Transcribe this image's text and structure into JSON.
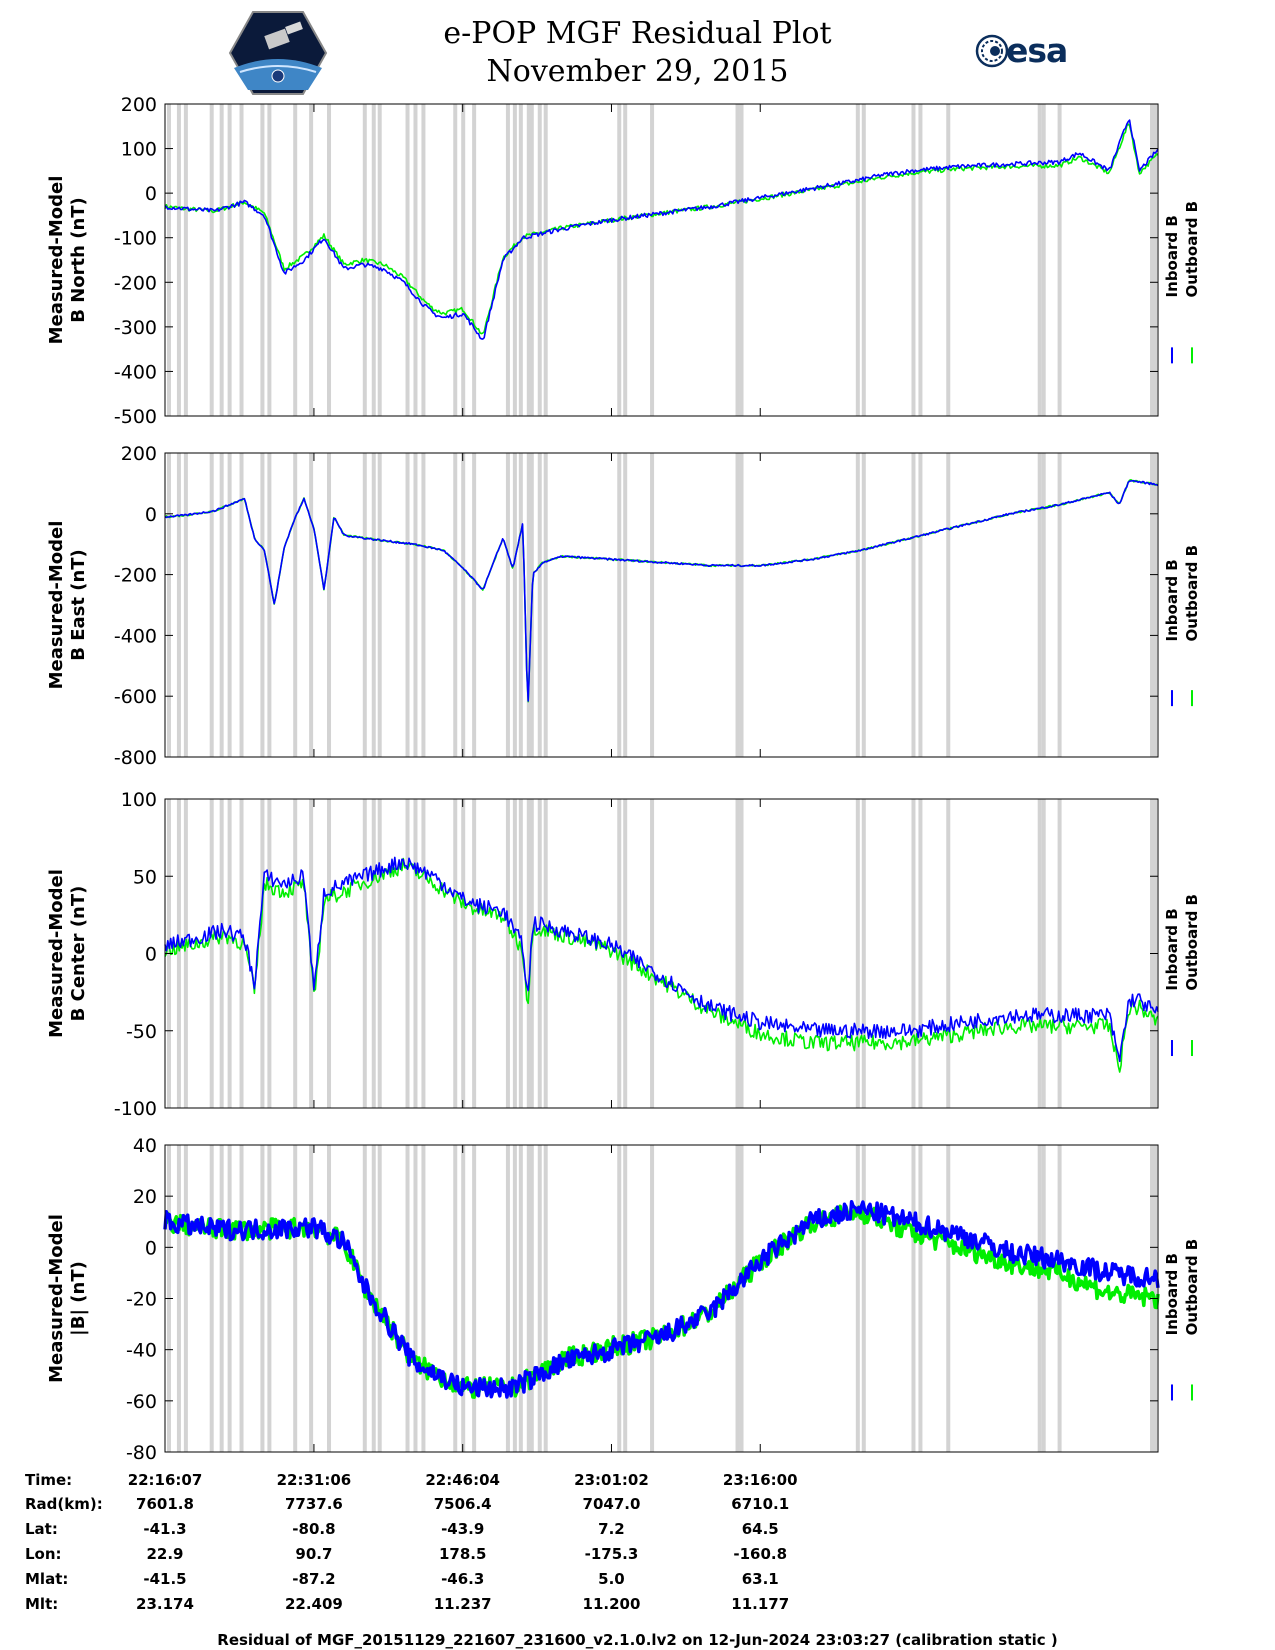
{
  "header": {
    "title": "e-POP MGF Residual Plot",
    "date": "November 29, 2015",
    "left_logo_icon": "cassiope-mission-logo",
    "right_logo_icon": "esa-logo",
    "right_logo_text": "esa"
  },
  "colors": {
    "inboard": "#0000ff",
    "outboard": "#00ee00",
    "gap_bands": "#d3d3d3",
    "frame": "#000000"
  },
  "chart_data": [
    {
      "type": "line",
      "ylabel_line1": "Measured-Model",
      "ylabel_line2": "B North (nT)",
      "ylim": [
        -500,
        200
      ],
      "yticks": [
        200,
        100,
        0,
        -100,
        -200,
        -300,
        -400,
        -500
      ],
      "legend": [
        "Inboard B",
        "Outboard B"
      ],
      "series": [
        {
          "name": "Inboard B",
          "x_min": [
            0,
            2,
            5,
            8,
            10,
            12,
            14,
            16,
            18,
            20,
            22,
            24,
            26,
            27,
            28,
            30,
            32,
            34,
            36,
            38,
            40,
            45,
            50,
            55,
            60,
            65,
            70,
            72,
            75,
            80,
            85,
            90,
            92,
            95,
            97,
            98,
            100
          ],
          "values": [
            -30,
            -35,
            -40,
            -20,
            -50,
            -180,
            -150,
            -100,
            -170,
            -160,
            -170,
            -200,
            -250,
            -270,
            -280,
            -270,
            -330,
            -150,
            -100,
            -90,
            -80,
            -60,
            -45,
            -30,
            -10,
            10,
            30,
            40,
            50,
            60,
            65,
            70,
            90,
            50,
            170,
            50,
            100
          ]
        },
        {
          "name": "Outboard B",
          "x_min": [
            0,
            2,
            5,
            8,
            10,
            12,
            14,
            16,
            18,
            20,
            22,
            24,
            26,
            27,
            28,
            30,
            32,
            34,
            36,
            38,
            40,
            45,
            50,
            55,
            60,
            65,
            70,
            72,
            75,
            80,
            85,
            90,
            92,
            95,
            97,
            98,
            100
          ],
          "values": [
            -30,
            -35,
            -40,
            -20,
            -45,
            -170,
            -140,
            -95,
            -160,
            -150,
            -160,
            -190,
            -240,
            -260,
            -270,
            -260,
            -320,
            -145,
            -98,
            -88,
            -78,
            -60,
            -45,
            -30,
            -12,
            7,
            26,
            35,
            45,
            55,
            60,
            62,
            80,
            45,
            160,
            45,
            90
          ]
        }
      ]
    },
    {
      "type": "line",
      "ylabel_line1": "Measured-Model",
      "ylabel_line2": "B East (nT)",
      "ylim": [
        -800,
        200
      ],
      "yticks": [
        200,
        0,
        -200,
        -400,
        -600,
        -800
      ],
      "legend": [
        "Inboard B",
        "Outboard B"
      ],
      "series": [
        {
          "name": "Inboard B",
          "x_min": [
            0,
            2,
            5,
            8,
            9,
            10,
            11,
            12,
            13,
            14,
            15,
            16,
            17,
            18,
            20,
            25,
            28,
            30,
            32,
            34,
            35,
            36,
            36.5,
            37,
            38,
            40,
            45,
            50,
            55,
            60,
            65,
            70,
            75,
            80,
            85,
            90,
            95,
            96,
            97,
            100
          ],
          "values": [
            -10,
            -5,
            10,
            50,
            -80,
            -120,
            -300,
            -110,
            -20,
            50,
            -50,
            -250,
            -10,
            -70,
            -80,
            -100,
            -120,
            -180,
            -250,
            -80,
            -180,
            -30,
            -650,
            -200,
            -160,
            -140,
            -150,
            -160,
            -170,
            -170,
            -150,
            -120,
            -80,
            -40,
            0,
            30,
            70,
            30,
            110,
            95
          ]
        },
        {
          "name": "Outboard B",
          "x_min": [
            0,
            2,
            5,
            8,
            9,
            10,
            11,
            12,
            13,
            14,
            15,
            16,
            17,
            18,
            20,
            25,
            28,
            30,
            32,
            34,
            35,
            36,
            36.5,
            37,
            38,
            40,
            45,
            50,
            55,
            60,
            65,
            70,
            75,
            80,
            85,
            90,
            95,
            96,
            97,
            100
          ],
          "values": [
            -10,
            -5,
            10,
            50,
            -80,
            -120,
            -300,
            -110,
            -20,
            50,
            -50,
            -250,
            -10,
            -70,
            -80,
            -100,
            -120,
            -180,
            -250,
            -80,
            -180,
            -30,
            -650,
            -200,
            -160,
            -140,
            -150,
            -160,
            -170,
            -170,
            -150,
            -120,
            -80,
            -40,
            0,
            30,
            70,
            30,
            110,
            95
          ]
        }
      ]
    },
    {
      "type": "line",
      "ylabel_line1": "Measured-Model",
      "ylabel_line2": "B Center (nT)",
      "ylim": [
        -100,
        100
      ],
      "yticks": [
        100,
        50,
        0,
        -50,
        -100
      ],
      "legend": [
        "Inboard B",
        "Outboard B"
      ],
      "series": [
        {
          "name": "Inboard B",
          "x_min": [
            0,
            3,
            6,
            8,
            9,
            10,
            12,
            14,
            15,
            16,
            18,
            20,
            24,
            27,
            30,
            32,
            34,
            36,
            36.5,
            37,
            40,
            45,
            50,
            55,
            60,
            65,
            70,
            75,
            80,
            85,
            90,
            95,
            96,
            97,
            98,
            100
          ],
          "values": [
            5,
            10,
            15,
            10,
            -20,
            50,
            45,
            50,
            -25,
            40,
            45,
            50,
            60,
            50,
            35,
            30,
            28,
            5,
            -30,
            20,
            15,
            5,
            -15,
            -35,
            -45,
            -50,
            -50,
            -50,
            -45,
            -40,
            -40,
            -40,
            -70,
            -30,
            -30,
            -40
          ]
        },
        {
          "name": "Outboard B",
          "x_min": [
            0,
            3,
            6,
            8,
            9,
            10,
            12,
            14,
            15,
            16,
            18,
            20,
            24,
            27,
            30,
            32,
            34,
            36,
            36.5,
            37,
            40,
            45,
            50,
            55,
            60,
            65,
            70,
            75,
            80,
            85,
            90,
            95,
            96,
            97,
            98,
            100
          ],
          "values": [
            2,
            6,
            12,
            6,
            -25,
            45,
            40,
            45,
            -30,
            35,
            40,
            46,
            57,
            46,
            32,
            27,
            24,
            2,
            -33,
            17,
            12,
            2,
            -18,
            -38,
            -52,
            -58,
            -58,
            -57,
            -52,
            -47,
            -47,
            -47,
            -75,
            -35,
            -35,
            -45
          ]
        }
      ]
    },
    {
      "type": "line",
      "ylabel_line1": "Measured-Model",
      "ylabel_line2": "|B| (nT)",
      "ylim": [
        -80,
        40
      ],
      "yticks": [
        40,
        20,
        0,
        -20,
        -40,
        -60,
        -80
      ],
      "legend": [
        "Inboard B",
        "Outboard B"
      ],
      "series": [
        {
          "name": "Inboard B",
          "x_min": [
            0,
            5,
            10,
            15,
            18,
            20,
            25,
            30,
            35,
            40,
            45,
            50,
            55,
            60,
            65,
            70,
            75,
            80,
            85,
            90,
            95,
            100
          ],
          "values": [
            10,
            7,
            7,
            8,
            2,
            -15,
            -45,
            -55,
            -55,
            -45,
            -40,
            -35,
            -25,
            -5,
            10,
            15,
            10,
            5,
            -2,
            -5,
            -10,
            -12
          ]
        },
        {
          "name": "Outboard B",
          "x_min": [
            0,
            5,
            10,
            15,
            18,
            20,
            25,
            30,
            35,
            40,
            45,
            50,
            55,
            60,
            65,
            70,
            75,
            80,
            85,
            90,
            95,
            100
          ],
          "values": [
            10,
            7,
            7,
            8,
            2,
            -15,
            -45,
            -55,
            -55,
            -44,
            -39,
            -35,
            -25,
            -5,
            10,
            14,
            6,
            0,
            -6,
            -10,
            -18,
            -20
          ]
        }
      ]
    }
  ],
  "gap_minutes": [
    0.4,
    1.4,
    2.1,
    4.7,
    5.7,
    6.5,
    7.7,
    9.8,
    10.5,
    13.1,
    14.7,
    16.5,
    20.1,
    21.0,
    21.6,
    24.4,
    25.2,
    26.0,
    29.2,
    30.0,
    31.1,
    34.5,
    35.2,
    35.8,
    36.6,
    36.9,
    37.7,
    38.3,
    45.7,
    46.3,
    49.0,
    57.6,
    58.0,
    69.7,
    70.3,
    75.3,
    76.0,
    78.8,
    88.0,
    88.4,
    90.0,
    99.3,
    99.6,
    100.4,
    100.8,
    101.4
  ],
  "x_axis": {
    "start_min": 0,
    "end_min": 99.9,
    "tick_min": [
      0,
      14.983,
      29.95,
      44.917,
      59.883
    ]
  },
  "info_table": {
    "labels": [
      "Time:",
      "Rad(km):",
      "Lat:",
      "Lon:",
      "Mlat:",
      "Mlt:"
    ],
    "columns": [
      {
        "time": "22:16:07",
        "rad": "7601.8",
        "lat": "-41.3",
        "lon": "22.9",
        "mlat": "-41.5",
        "mlt": "23.174"
      },
      {
        "time": "22:31:06",
        "rad": "7737.6",
        "lat": "-80.8",
        "lon": "90.7",
        "mlat": "-87.2",
        "mlt": "22.409"
      },
      {
        "time": "22:46:04",
        "rad": "7506.4",
        "lat": "-43.9",
        "lon": "178.5",
        "mlat": "-46.3",
        "mlt": "11.237"
      },
      {
        "time": "23:01:02",
        "rad": "7047.0",
        "lat": "7.2",
        "lon": "-175.3",
        "mlat": "5.0",
        "mlt": "11.200"
      },
      {
        "time": "23:16:00",
        "rad": "6710.1",
        "lat": "64.5",
        "lon": "-160.8",
        "mlat": "63.1",
        "mlt": "11.177"
      }
    ]
  },
  "footer": "Residual of MGF_20151129_221607_231600_v2.1.0.lv2 on 12-Jun-2024 23:03:27 (calibration static )"
}
